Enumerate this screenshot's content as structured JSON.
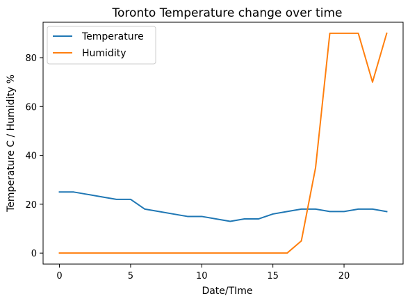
{
  "chart_data": {
    "type": "line",
    "title": "Toronto Temperature change over time",
    "xlabel": "Date/TIme",
    "ylabel": "Temperature C / Humidity %",
    "xlim": [
      -1.15,
      24.15
    ],
    "ylim": [
      -4.5,
      94.5
    ],
    "xticks": [
      0,
      5,
      10,
      15,
      20
    ],
    "yticks": [
      0,
      20,
      40,
      60,
      80
    ],
    "grid": false,
    "legend_position": "upper-left",
    "x": [
      0,
      1,
      2,
      3,
      4,
      5,
      6,
      7,
      8,
      9,
      10,
      11,
      12,
      13,
      14,
      15,
      16,
      17,
      18,
      19,
      20,
      21,
      22,
      23
    ],
    "series": [
      {
        "name": "Temperature",
        "color": "#1f77b4",
        "values": [
          25,
          25,
          24,
          23,
          22,
          22,
          18,
          17,
          16,
          15,
          15,
          14,
          13,
          14,
          14,
          16,
          17,
          18,
          18,
          17,
          17,
          18,
          18,
          17
        ]
      },
      {
        "name": "Humidity",
        "color": "#ff7f0e",
        "values": [
          0,
          0,
          0,
          0,
          0,
          0,
          0,
          0,
          0,
          0,
          0,
          0,
          0,
          0,
          0,
          0,
          0,
          5,
          35,
          90,
          90,
          90,
          70,
          90
        ]
      }
    ]
  }
}
